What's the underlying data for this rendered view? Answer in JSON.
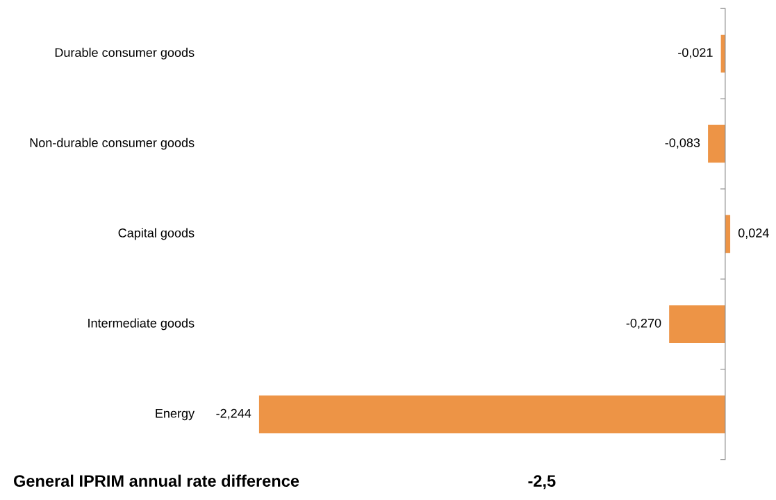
{
  "chart_data": {
    "type": "bar",
    "orientation": "horizontal",
    "categories": [
      "Durable consumer goods",
      "Non-durable consumer goods",
      "Capital goods",
      "Intermediate goods",
      "Energy"
    ],
    "values": [
      -0.021,
      -0.083,
      0.024,
      -0.27,
      -2.244
    ],
    "value_labels": [
      "-0,021",
      "-0,083",
      "0,024",
      "-0,270",
      "-2,244"
    ],
    "color": "#ed9446",
    "grid": false,
    "legend": false,
    "annotations": [
      "General IPRIM annual rate difference",
      "-2,5"
    ]
  }
}
